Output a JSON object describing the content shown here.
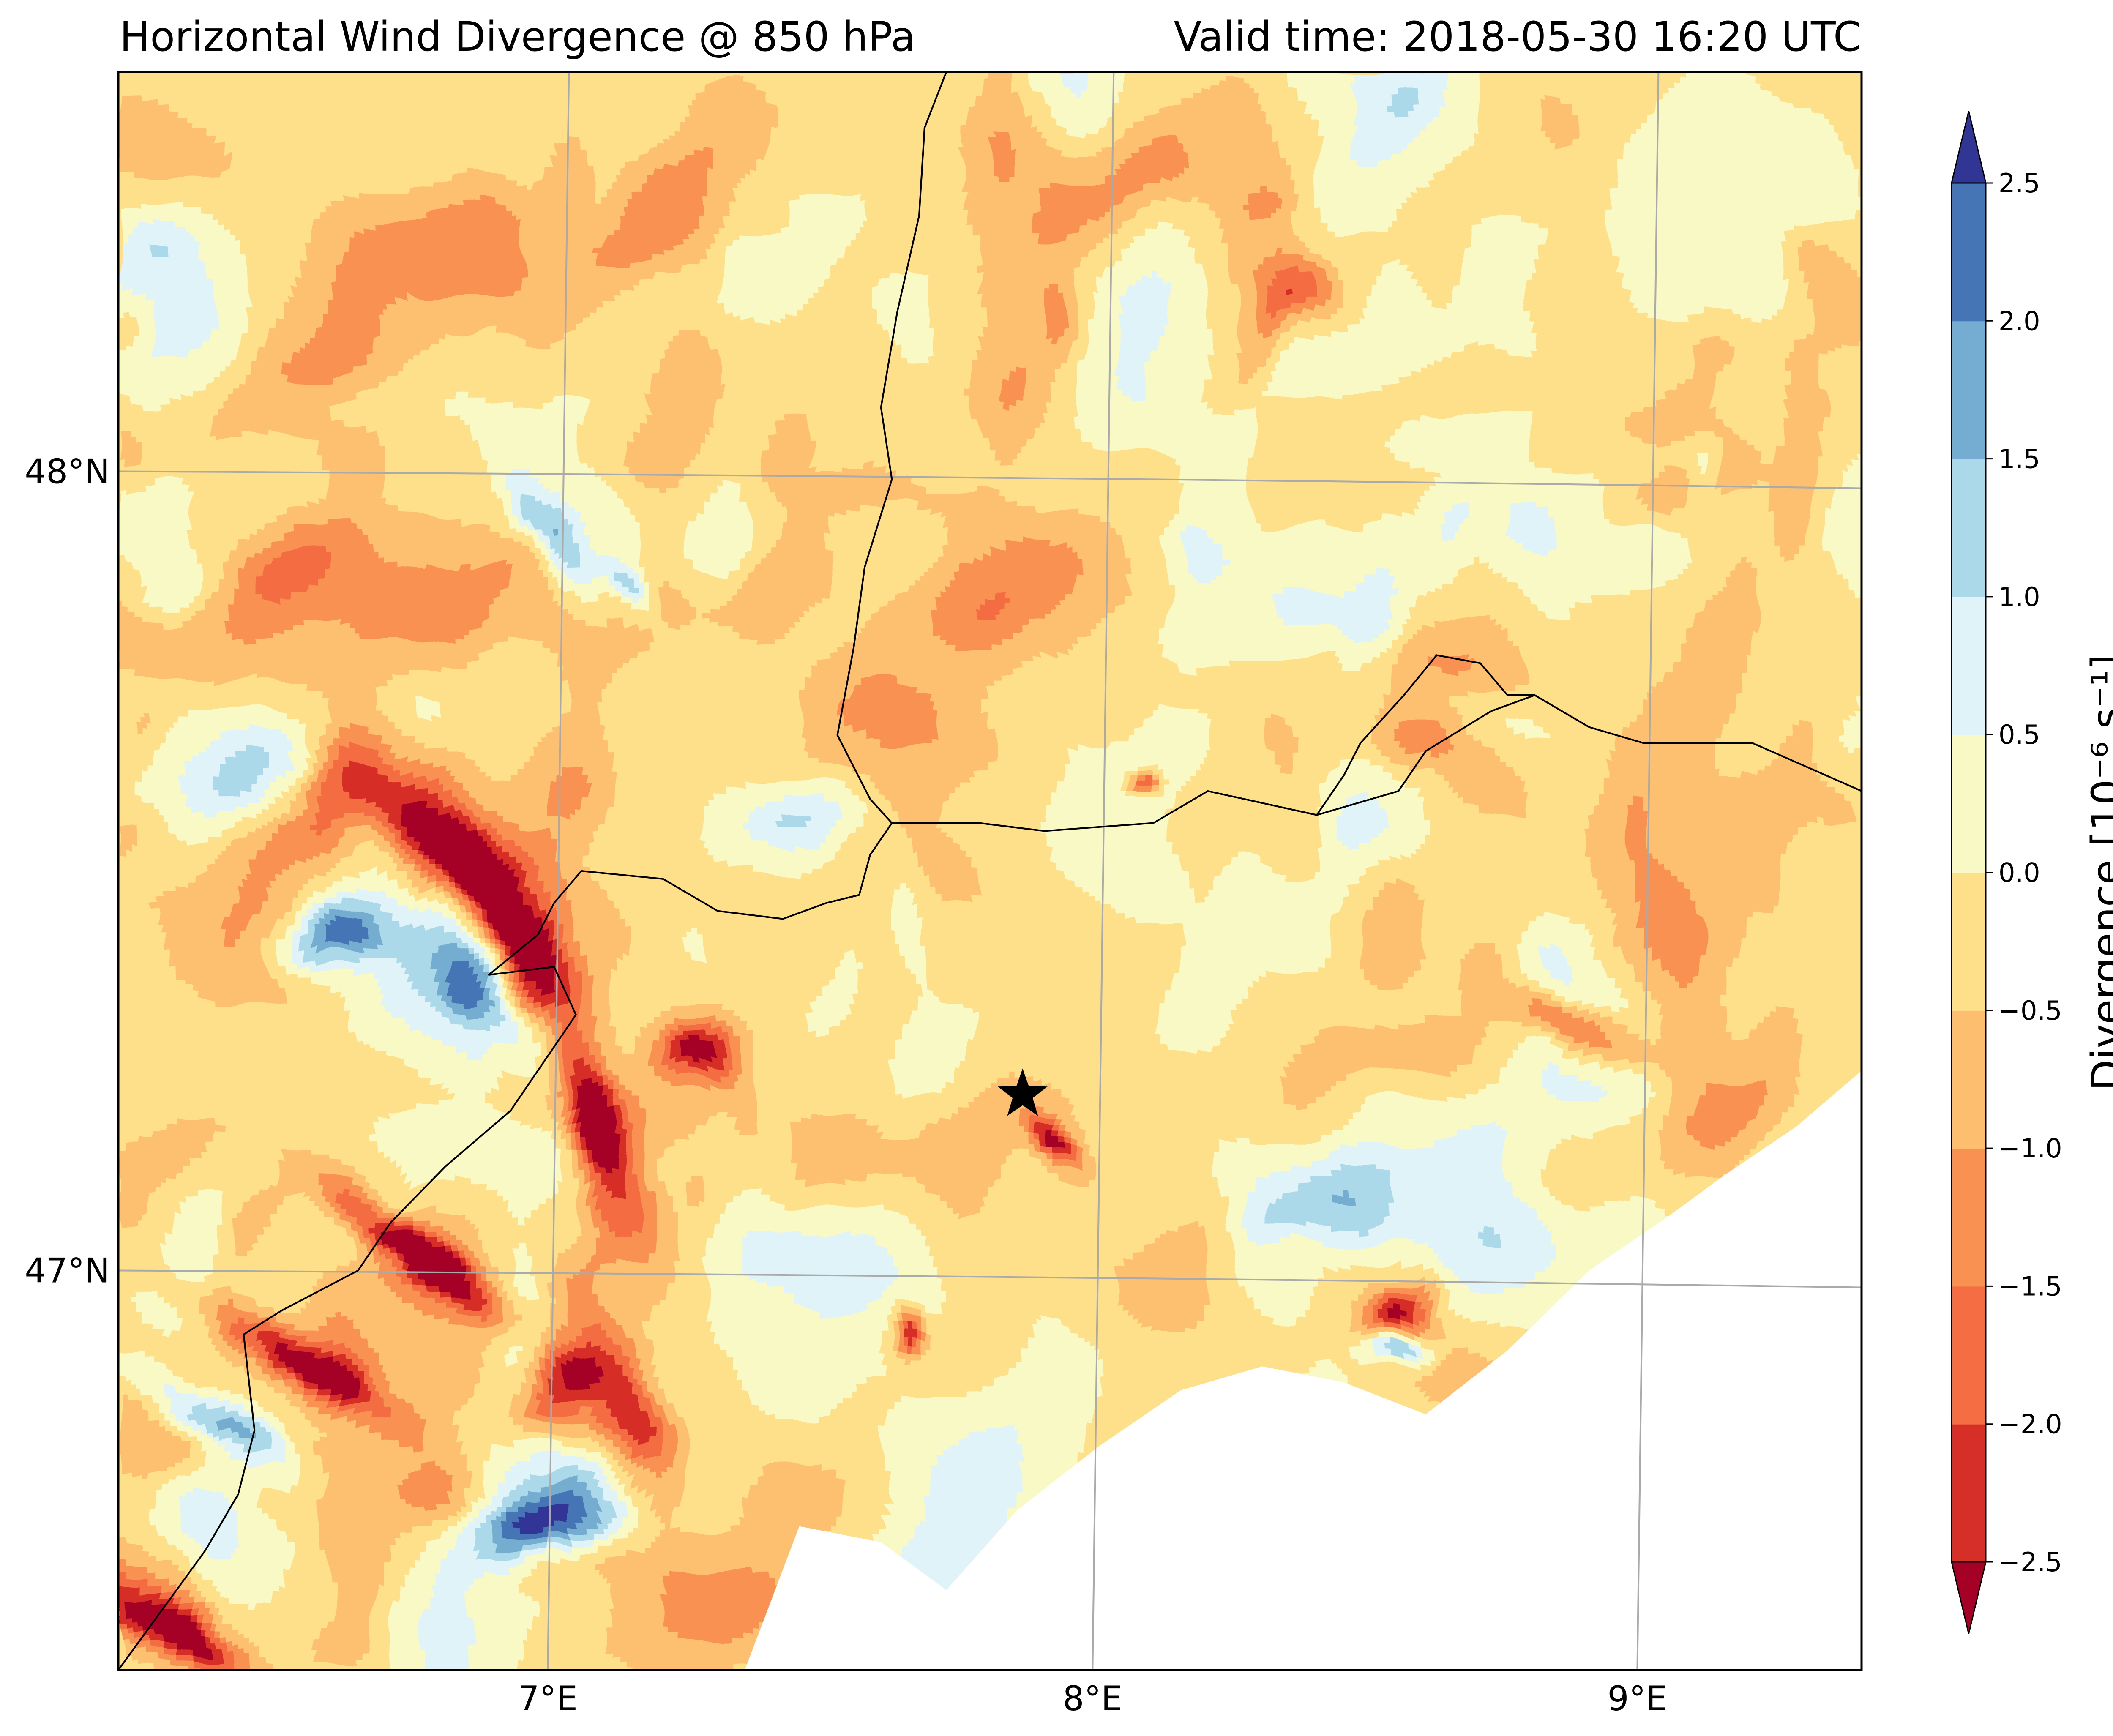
{
  "title_left": "Horizontal Wind Divergence @ 850 hPa",
  "title_right": "Valid time: 2018-05-30 16:20 UTC",
  "map": {
    "lon_range": [
      6.2,
      9.4
    ],
    "lat_range": [
      46.5,
      48.5
    ],
    "lat_labels": [
      {
        "value": 48,
        "text": "48°N"
      },
      {
        "value": 47,
        "text": "47°N"
      }
    ],
    "lon_labels": [
      {
        "value": 7,
        "text": "7°E"
      },
      {
        "value": 8,
        "text": "8°E"
      },
      {
        "value": 9,
        "text": "9°E"
      }
    ],
    "marker": {
      "symbol": "star",
      "lon": 7.86,
      "lat": 47.22
    },
    "gridline_color": "#aaaaaa",
    "border_color": "#000000",
    "missing_color": "#ffffff"
  },
  "colorbar": {
    "label": "Divergence [10⁻⁶ s⁻¹]",
    "extend": "both",
    "levels": [
      -2.5,
      -2.0,
      -1.5,
      -1.0,
      -0.5,
      0.0,
      0.5,
      1.0,
      1.5,
      2.0,
      2.5
    ],
    "tick_labels": [
      "−2.5",
      "−2.0",
      "−1.5",
      "−1.0",
      "−0.5",
      "0.0",
      "0.5",
      "1.0",
      "1.5",
      "2.0",
      "2.5"
    ],
    "colors": [
      "#d62f27",
      "#f46d43",
      "#f99153",
      "#fdbf6f",
      "#fee08b",
      "#f9f9c5",
      "#e0f3f8",
      "#abd9e9",
      "#74add1",
      "#4575b4"
    ],
    "under_color": "#a50026",
    "over_color": "#313695"
  }
}
